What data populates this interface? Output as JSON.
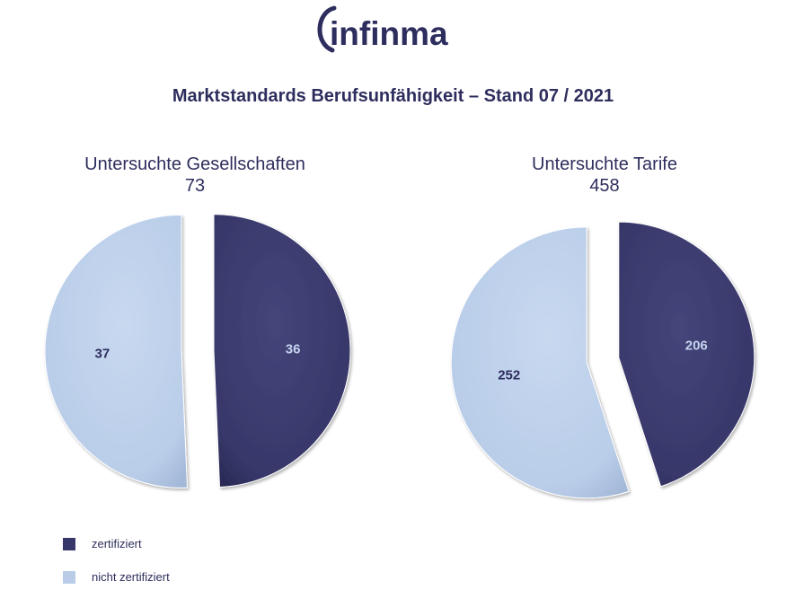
{
  "logo": {
    "text": "infinma"
  },
  "title": "Marktstandards Berufsunfähigkeit – Stand 07 / 2021",
  "colors": {
    "zertifiziert": "#37376a",
    "nicht_zertifiziert": "#b9cde9",
    "text": "#2e2e5e"
  },
  "legend": [
    {
      "label": "zertifiziert",
      "color_key": "zertifiziert"
    },
    {
      "label": "nicht zertifiziert",
      "color_key": "nicht_zertifiziert"
    }
  ],
  "chart_data": [
    {
      "type": "pie",
      "title": "Untersuchte Gesellschaften",
      "total": "73",
      "slices": [
        {
          "label": "zertifiziert",
          "value": 36
        },
        {
          "label": "nicht zertifiziert",
          "value": 37
        }
      ]
    },
    {
      "type": "pie",
      "title": "Untersuchte Tarife",
      "total": "458",
      "slices": [
        {
          "label": "zertifiziert",
          "value": 206
        },
        {
          "label": "nicht zertifiziert",
          "value": 252
        }
      ]
    }
  ]
}
